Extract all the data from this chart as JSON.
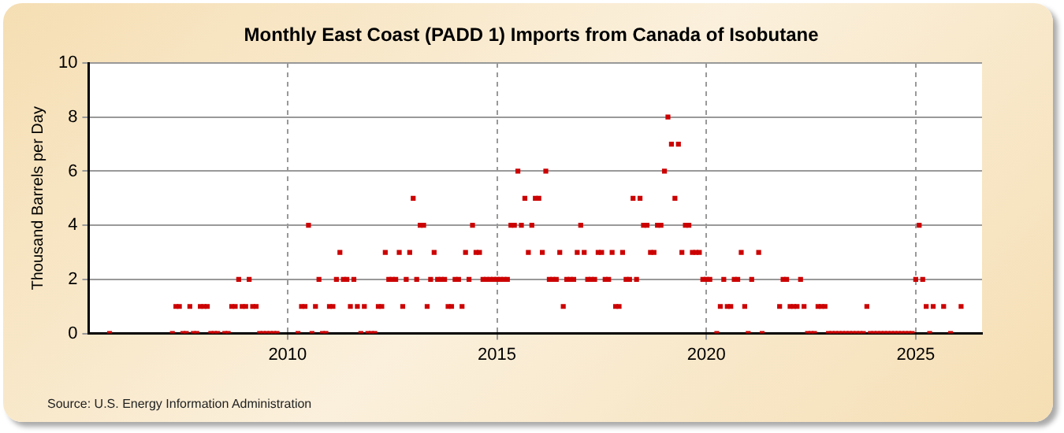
{
  "chart_data": {
    "type": "scatter",
    "title": "Monthly East Coast (PADD 1) Imports from Canada of Isobutane",
    "ylabel": "Thousand Barrels per Day",
    "annotations": [
      "Source: U.S. Energy Information Administration"
    ],
    "xlim": [
      "2005-04",
      "2026-08"
    ],
    "xticks": [
      "2010",
      "2015",
      "2020",
      "2025"
    ],
    "ylim": [
      0,
      10
    ],
    "yticks": [
      0,
      2,
      4,
      6,
      8,
      10
    ],
    "grid": true,
    "marker": "square",
    "legend": false,
    "series": [
      {
        "color": "#cc0000",
        "x": [
          "2005-10",
          "2007-04",
          "2007-05",
          "2007-06",
          "2007-07",
          "2007-08",
          "2007-09",
          "2007-10",
          "2007-11",
          "2007-12",
          "2008-01",
          "2008-02",
          "2008-03",
          "2008-04",
          "2008-05",
          "2008-07",
          "2008-08",
          "2008-09",
          "2008-10",
          "2008-11",
          "2008-12",
          "2009-01",
          "2009-02",
          "2009-03",
          "2009-04",
          "2009-05",
          "2009-06",
          "2009-07",
          "2009-08",
          "2009-09",
          "2009-10",
          "2010-04",
          "2010-05",
          "2010-06",
          "2010-07",
          "2010-08",
          "2010-09",
          "2010-10",
          "2010-11",
          "2010-12",
          "2011-01",
          "2011-02",
          "2011-03",
          "2011-04",
          "2011-05",
          "2011-06",
          "2011-07",
          "2011-08",
          "2011-09",
          "2011-10",
          "2011-11",
          "2011-12",
          "2012-01",
          "2012-02",
          "2012-03",
          "2012-04",
          "2012-05",
          "2012-06",
          "2012-07",
          "2012-08",
          "2012-09",
          "2012-10",
          "2012-11",
          "2012-12",
          "2013-01",
          "2013-02",
          "2013-03",
          "2013-04",
          "2013-05",
          "2013-06",
          "2013-07",
          "2013-08",
          "2013-09",
          "2013-10",
          "2013-11",
          "2013-12",
          "2014-01",
          "2014-02",
          "2014-03",
          "2014-04",
          "2014-05",
          "2014-06",
          "2014-07",
          "2014-08",
          "2014-09",
          "2014-10",
          "2014-11",
          "2014-12",
          "2015-01",
          "2015-02",
          "2015-03",
          "2015-04",
          "2015-05",
          "2015-06",
          "2015-07",
          "2015-08",
          "2015-09",
          "2015-10",
          "2015-11",
          "2015-12",
          "2016-01",
          "2016-02",
          "2016-03",
          "2016-04",
          "2016-05",
          "2016-06",
          "2016-07",
          "2016-08",
          "2016-09",
          "2016-10",
          "2016-11",
          "2016-12",
          "2017-01",
          "2017-02",
          "2017-03",
          "2017-04",
          "2017-05",
          "2017-06",
          "2017-07",
          "2017-08",
          "2017-09",
          "2017-10",
          "2017-11",
          "2017-12",
          "2018-01",
          "2018-02",
          "2018-03",
          "2018-04",
          "2018-05",
          "2018-06",
          "2018-07",
          "2018-08",
          "2018-09",
          "2018-10",
          "2018-11",
          "2018-12",
          "2019-01",
          "2019-02",
          "2019-03",
          "2019-04",
          "2019-05",
          "2019-06",
          "2019-07",
          "2019-08",
          "2019-09",
          "2019-10",
          "2019-11",
          "2019-12",
          "2020-01",
          "2020-02",
          "2020-04",
          "2020-05",
          "2020-06",
          "2020-07",
          "2020-08",
          "2020-09",
          "2020-10",
          "2020-11",
          "2020-12",
          "2021-01",
          "2021-02",
          "2021-04",
          "2021-05",
          "2021-10",
          "2021-11",
          "2021-12",
          "2022-01",
          "2022-02",
          "2022-03",
          "2022-04",
          "2022-05",
          "2022-06",
          "2022-07",
          "2022-08",
          "2022-09",
          "2022-10",
          "2022-11",
          "2022-12",
          "2023-01",
          "2023-02",
          "2023-03",
          "2023-04",
          "2023-05",
          "2023-06",
          "2023-07",
          "2023-08",
          "2023-09",
          "2023-10",
          "2023-11",
          "2023-12",
          "2024-01",
          "2024-02",
          "2024-03",
          "2024-04",
          "2024-05",
          "2024-06",
          "2024-07",
          "2024-08",
          "2024-09",
          "2024-10",
          "2024-11",
          "2024-12",
          "2025-01",
          "2025-02",
          "2025-03",
          "2025-04",
          "2025-05",
          "2025-06",
          "2025-09",
          "2025-11",
          "2026-02"
        ],
        "values": [
          0,
          0,
          1,
          1,
          0,
          0,
          1,
          0,
          0,
          1,
          1,
          1,
          0,
          0,
          0,
          0,
          0,
          1,
          1,
          2,
          1,
          1,
          2,
          1,
          1,
          0,
          0,
          0,
          0,
          0,
          0,
          0,
          1,
          1,
          4,
          0,
          1,
          2,
          0,
          0,
          1,
          1,
          2,
          3,
          2,
          2,
          1,
          2,
          1,
          0,
          1,
          0,
          0,
          0,
          1,
          1,
          3,
          2,
          2,
          2,
          3,
          1,
          2,
          3,
          5,
          2,
          4,
          4,
          1,
          2,
          3,
          2,
          2,
          2,
          1,
          1,
          2,
          2,
          1,
          3,
          2,
          4,
          3,
          3,
          2,
          2,
          2,
          2,
          2,
          2,
          2,
          2,
          4,
          4,
          6,
          4,
          5,
          3,
          4,
          5,
          5,
          3,
          6,
          2,
          2,
          2,
          3,
          1,
          2,
          2,
          2,
          3,
          4,
          3,
          2,
          2,
          2,
          3,
          3,
          2,
          2,
          3,
          1,
          1,
          3,
          2,
          2,
          5,
          2,
          5,
          4,
          4,
          3,
          3,
          4,
          4,
          6,
          8,
          7,
          5,
          7,
          3,
          4,
          4,
          3,
          3,
          3,
          2,
          2,
          2,
          0,
          1,
          2,
          1,
          1,
          2,
          2,
          3,
          1,
          0,
          2,
          3,
          0,
          1,
          2,
          2,
          1,
          1,
          1,
          2,
          1,
          0,
          0,
          0,
          1,
          1,
          1,
          0,
          0,
          0,
          0,
          0,
          0,
          0,
          0,
          0,
          0,
          0,
          1,
          0,
          0,
          0,
          0,
          0,
          0,
          0,
          0,
          0,
          0,
          0,
          0,
          0,
          2,
          4,
          2,
          1,
          0,
          1,
          1,
          0,
          1
        ]
      }
    ]
  }
}
